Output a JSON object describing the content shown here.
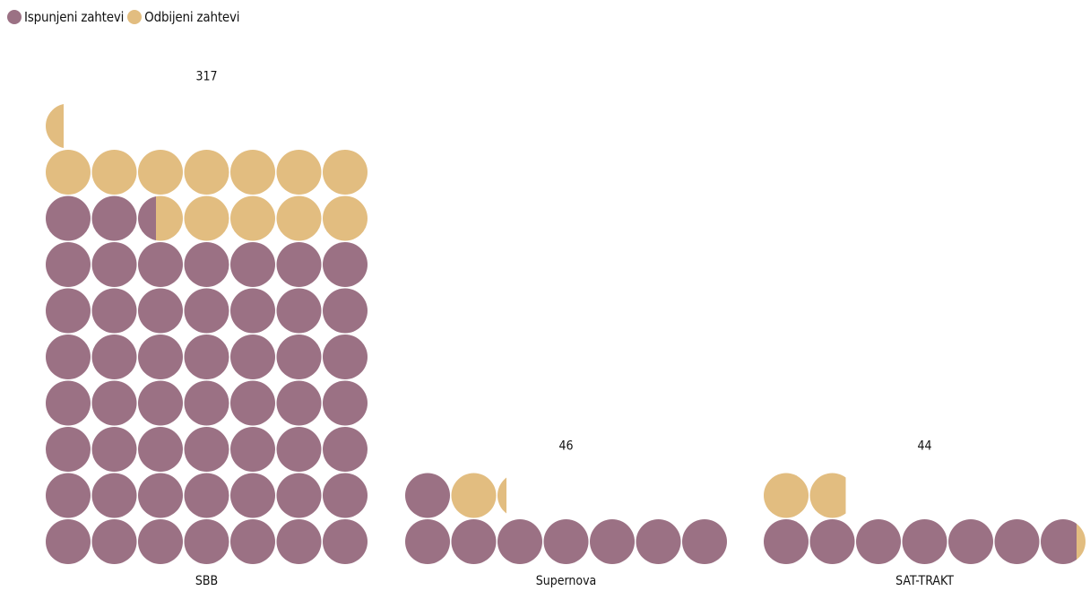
{
  "chart_data": {
    "type": "waffle",
    "unit_per_circle": 5,
    "series": [
      {
        "name": "Ispunjeni zahtevi",
        "color": "#9b7184"
      },
      {
        "name": "Odbijeni zahtevi",
        "color": "#e2bd80"
      }
    ],
    "categories": [
      "SBB",
      "Supernova",
      "SAT-TRAKT"
    ],
    "totals": [
      317,
      46,
      44
    ],
    "values": {
      "Ispunjeni zahtevi": [
        257,
        40,
        34
      ],
      "Odbijeni zahtevi": [
        60,
        6,
        10
      ]
    }
  }
}
